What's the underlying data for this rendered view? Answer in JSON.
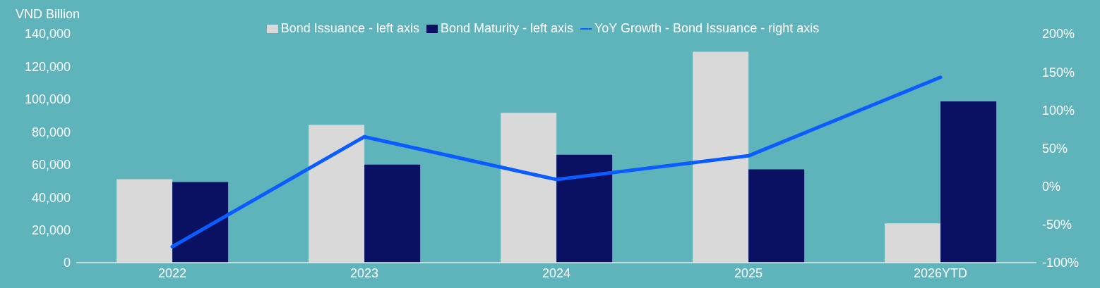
{
  "chart_data": {
    "type": "bar",
    "ylabel": "VND Billion",
    "categories": [
      "2022",
      "2023",
      "2024",
      "2025",
      "2026YTD"
    ],
    "series": [
      {
        "name": "Bond Issuance - left axis",
        "color": "#d9d9d9",
        "values": [
          51000,
          84300,
          91600,
          129000,
          24000
        ]
      },
      {
        "name": "Bond Maturity - left axis",
        "color": "#0a1162",
        "values": [
          49300,
          60000,
          66000,
          57100,
          98600
        ]
      },
      {
        "name": "YoY Growth - Bond Issuance - right axis",
        "type": "line",
        "axis": "y2",
        "color": "#0a5cff",
        "values": [
          -79,
          65,
          9,
          40,
          143
        ]
      }
    ],
    "ylim": [
      0,
      140000
    ],
    "yticks": [
      {
        "value": 0,
        "label": "0"
      },
      {
        "value": 20000,
        "label": "20,000"
      },
      {
        "value": 40000,
        "label": "40,000"
      },
      {
        "value": 60000,
        "label": "60,000"
      },
      {
        "value": 80000,
        "label": "80,000"
      },
      {
        "value": 100000,
        "label": "100,000"
      },
      {
        "value": 120000,
        "label": "120,000"
      },
      {
        "value": 140000,
        "label": "140,000"
      }
    ],
    "y2lim": [
      -100,
      200
    ],
    "y2ticks": [
      {
        "value": -100,
        "label": "-100%"
      },
      {
        "value": -50,
        "label": "-50%"
      },
      {
        "value": 0,
        "label": "0%"
      },
      {
        "value": 50,
        "label": "50%"
      },
      {
        "value": 100,
        "label": "100%"
      },
      {
        "value": 150,
        "label": "150%"
      },
      {
        "value": 200,
        "label": "200%"
      }
    ],
    "legend": "top",
    "grid": false
  }
}
